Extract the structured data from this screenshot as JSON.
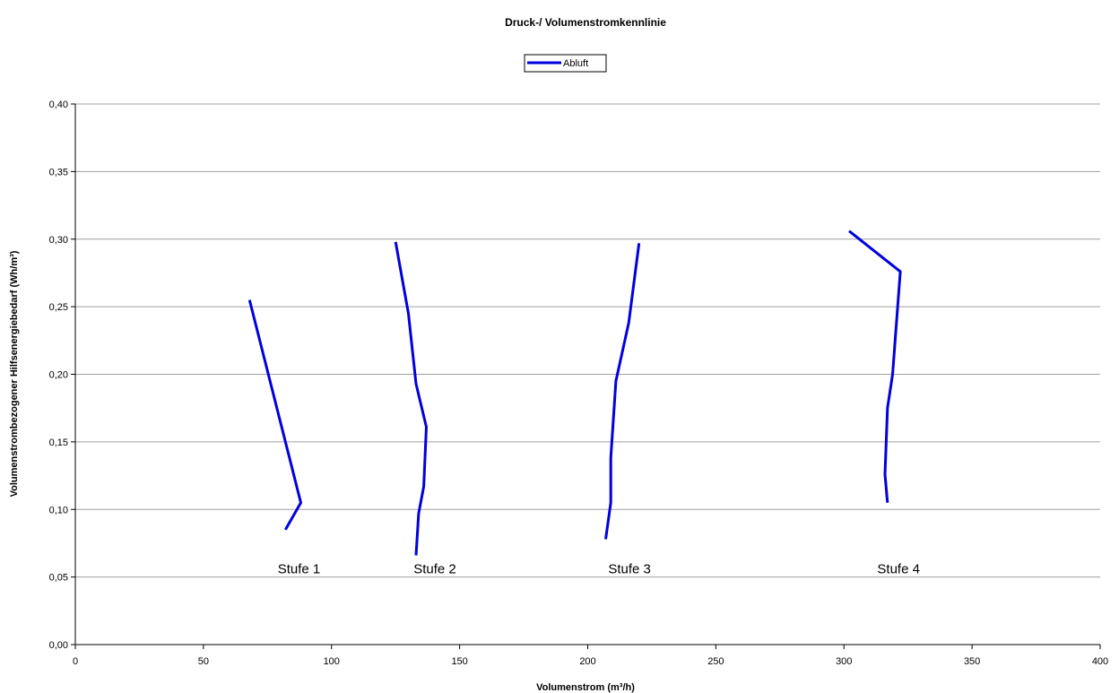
{
  "chart_data": {
    "type": "line",
    "title": "Druck-/ Volumenstromkennlinie",
    "xlabel": "Volumenstrom (m³/h)",
    "ylabel": "Volumenstrombezogener Hilfsenergiebedarf (Wh/m³)",
    "xlim": [
      0,
      400
    ],
    "ylim": [
      0,
      0.4
    ],
    "x_ticks": [
      "0",
      "50",
      "100",
      "150",
      "200",
      "250",
      "300",
      "350",
      "400"
    ],
    "y_ticks": [
      "0,00",
      "0,05",
      "0,10",
      "0,15",
      "0,20",
      "0,25",
      "0,30",
      "0,35",
      "0,40"
    ],
    "grid": "horizontal",
    "legend_position": "top-center",
    "color": "#0000dd",
    "series": [
      {
        "name": "Abluft",
        "segments": [
          [
            [
              68,
              0.255
            ],
            [
              88,
              0.105
            ],
            [
              82,
              0.085
            ]
          ],
          [
            [
              125,
              0.298
            ],
            [
              130,
              0.245
            ],
            [
              133,
              0.193
            ],
            [
              137,
              0.161
            ],
            [
              136,
              0.117
            ],
            [
              134,
              0.097
            ],
            [
              133,
              0.066
            ]
          ],
          [
            [
              220,
              0.297
            ],
            [
              216,
              0.238
            ],
            [
              211,
              0.195
            ],
            [
              209,
              0.138
            ],
            [
              209,
              0.105
            ],
            [
              207,
              0.078
            ]
          ],
          [
            [
              302,
              0.306
            ],
            [
              322,
              0.276
            ],
            [
              319,
              0.2
            ],
            [
              317,
              0.175
            ],
            [
              316,
              0.126
            ],
            [
              317,
              0.105
            ]
          ]
        ]
      }
    ],
    "annotations": [
      {
        "text": "Stufe 1",
        "x": 79,
        "y": 0.056
      },
      {
        "text": "Stufe 2",
        "x": 132,
        "y": 0.056
      },
      {
        "text": "Stufe 3",
        "x": 208,
        "y": 0.056
      },
      {
        "text": "Stufe 4",
        "x": 313,
        "y": 0.056
      }
    ]
  }
}
